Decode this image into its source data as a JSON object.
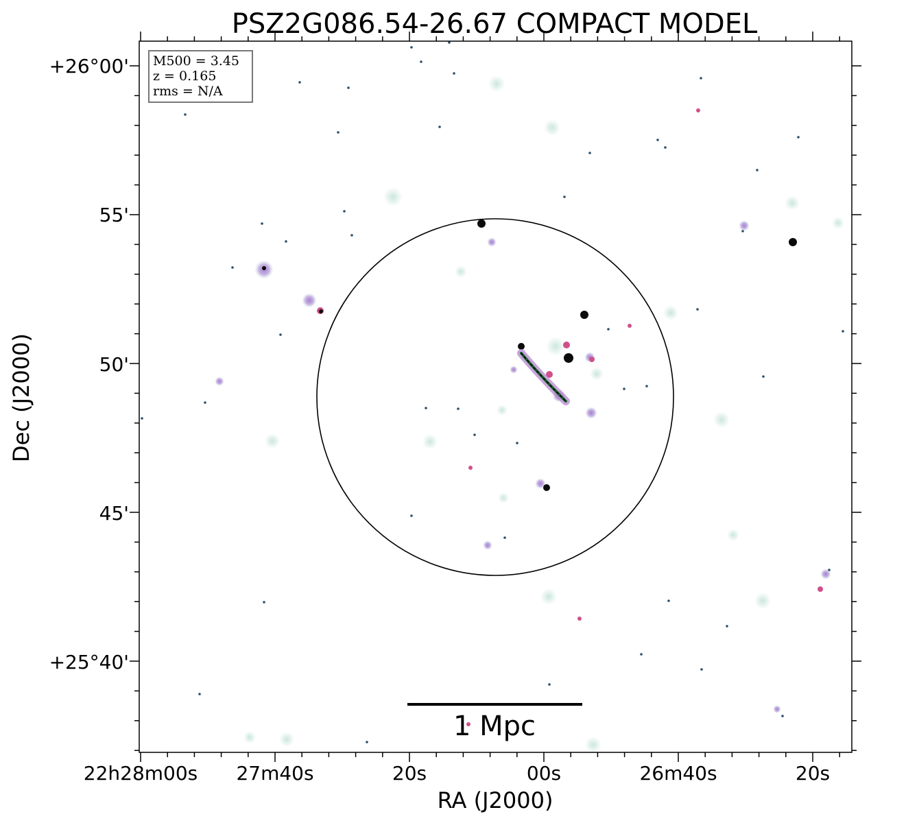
{
  "title": "PSZ2G086.54-26.67 COMPACT MODEL",
  "info_box": {
    "m500": "M500 = 3.45",
    "z": "z = 0.165",
    "rms": "rms = N/A"
  },
  "scale_bar": {
    "label": "1 Mpc"
  },
  "axes": {
    "xlabel": "RA (J2000)",
    "ylabel": "Dec (J2000)",
    "x_ticks": [
      "22h28m00s",
      "27m40s",
      "20s",
      "00s",
      "26m40s",
      "20s"
    ],
    "y_ticks": [
      "+26°00'",
      "55'",
      "50'",
      "45'",
      "+25°40'"
    ]
  },
  "colors": {
    "frame": "#000000",
    "source_glow": "#c9e6dc",
    "source_core": "#b68ad0",
    "source_hot": "#d0508a",
    "source_dark": "#1c5f2e"
  }
}
